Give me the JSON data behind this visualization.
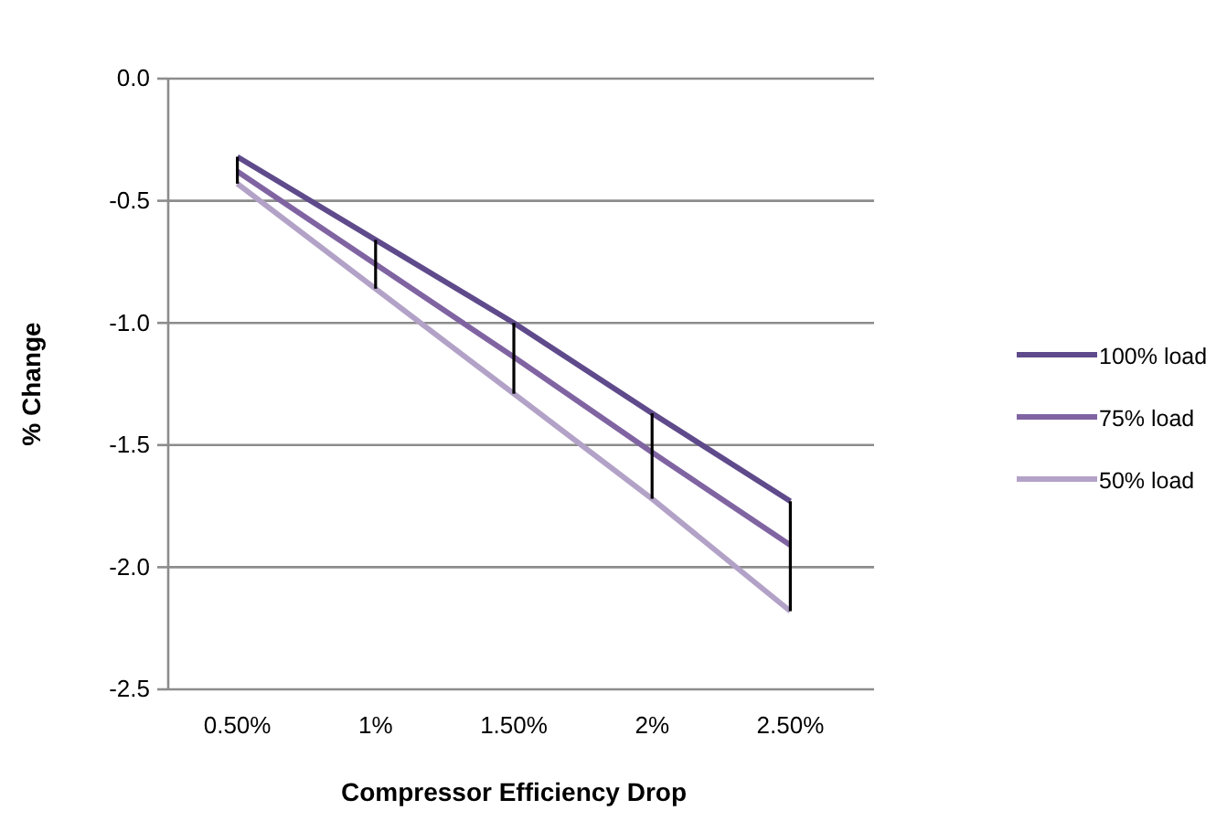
{
  "chart_data": {
    "type": "line",
    "xlabel": "Compressor Efficiency Drop",
    "ylabel": "% Change",
    "categories": [
      "0.50%",
      "1%",
      "1.50%",
      "2%",
      "2.50%"
    ],
    "series": [
      {
        "name": "100% load",
        "color": "#5f4a8b",
        "values": [
          -0.32,
          -0.66,
          -1.0,
          -1.37,
          -1.73
        ],
        "errors": [
          [
            -0.43,
            -0.32
          ],
          [
            -0.86,
            -0.66
          ],
          [
            -1.29,
            -1.0
          ],
          [
            -1.72,
            -1.37
          ],
          [
            -2.18,
            -1.73
          ]
        ]
      },
      {
        "name": "75% load",
        "color": "#8064a2",
        "values": [
          -0.38,
          -0.76,
          -1.14,
          -1.53,
          -1.91
        ]
      },
      {
        "name": "50% load",
        "color": "#b3a2c7",
        "values": [
          -0.43,
          -0.86,
          -1.29,
          -1.72,
          -2.18
        ]
      }
    ],
    "ylim": [
      -2.5,
      0
    ],
    "yticks": [
      {
        "value": -2.5,
        "label": "-2.5"
      },
      {
        "value": -2,
        "label": "-2.0"
      },
      {
        "value": -1.5,
        "label": "-1.5"
      },
      {
        "value": -1,
        "label": "-1.0"
      },
      {
        "value": -0.5,
        "label": "-0.5"
      },
      {
        "value": 0,
        "label": "0.0"
      }
    ],
    "grid": "y",
    "legend": "right",
    "marker": "none",
    "line_style": "solid"
  }
}
